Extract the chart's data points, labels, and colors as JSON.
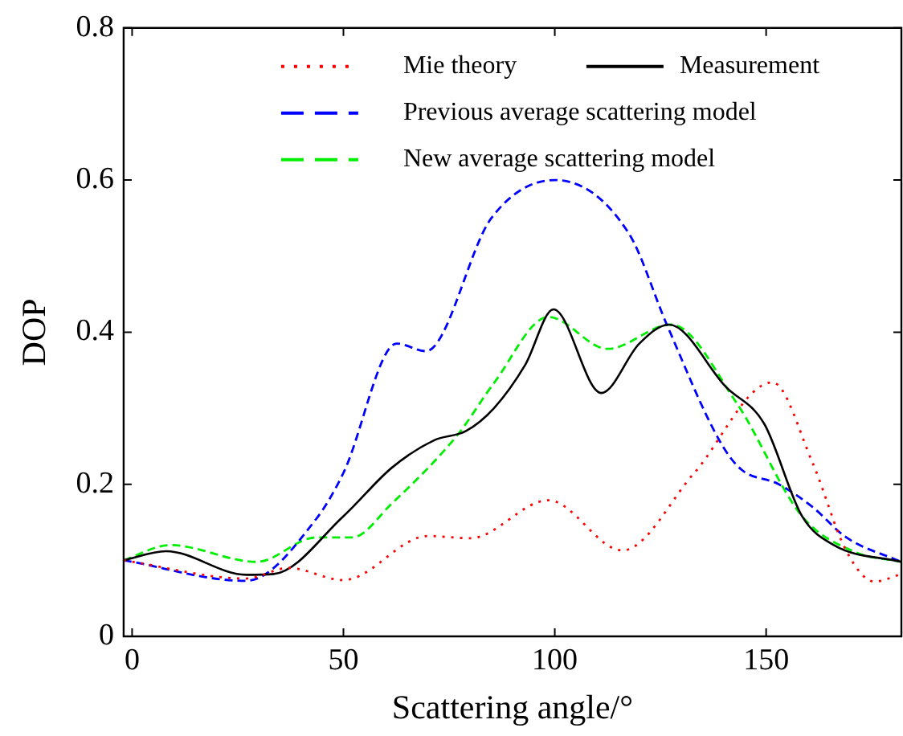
{
  "chart_data": {
    "type": "line",
    "xlabel": "Scattering angle/°",
    "ylabel": "DOP",
    "xlim": [
      -2,
      182
    ],
    "xticks": [
      0,
      50,
      100,
      150
    ],
    "ylim": [
      0,
      0.8
    ],
    "yticks": [
      0,
      0.2,
      0.4,
      0.6,
      0.8
    ],
    "grid": false,
    "legend": "top right",
    "marker": "none",
    "series": [
      {
        "name": "Mie theory",
        "color": "#ff0000",
        "line_style": "dotted",
        "x": [
          -2,
          27,
          37,
          50,
          70,
          80,
          98.5,
          116,
          133,
          151.5,
          161,
          169,
          175.6,
          182
        ],
        "values": [
          0.1,
          0.076,
          0.09,
          0.074,
          0.132,
          0.129,
          0.179,
          0.113,
          0.215,
          0.334,
          0.228,
          0.112,
          0.072,
          0.082
        ]
      },
      {
        "name": "Measurement",
        "color": "#000000",
        "line_style": "solid",
        "x": [
          -2,
          8,
          27,
          33.5,
          50,
          61.5,
          71.5,
          79,
          85.6,
          93,
          99.7,
          111,
          120,
          127,
          140.5,
          149.5,
          158.5,
          166,
          182
        ],
        "values": [
          0.1,
          0.112,
          0.081,
          0.082,
          0.158,
          0.222,
          0.258,
          0.27,
          0.3,
          0.357,
          0.43,
          0.32,
          0.385,
          0.41,
          0.328,
          0.28,
          0.158,
          0.12,
          0.098
        ]
      },
      {
        "name": "Previous average scattering model",
        "color": "#0000ff",
        "line_style": "dashed",
        "x": [
          -2,
          26.9,
          43.5,
          50,
          62.6,
          69.5,
          85,
          100,
          117.5,
          126.5,
          139,
          144,
          153,
          161,
          169,
          182
        ],
        "values": [
          0.1,
          0.073,
          0.154,
          0.215,
          0.385,
          0.375,
          0.55,
          0.6,
          0.53,
          0.41,
          0.257,
          0.22,
          0.2,
          0.17,
          0.13,
          0.098
        ]
      },
      {
        "name": "New average scattering model",
        "color": "#00ee00",
        "line_style": "dashed",
        "x": [
          -2,
          9,
          29.5,
          43.5,
          52,
          61.5,
          77,
          85.6,
          98.5,
          112.5,
          127.5,
          143,
          158.5,
          171,
          182
        ],
        "values": [
          0.1,
          0.12,
          0.098,
          0.13,
          0.13,
          0.175,
          0.265,
          0.333,
          0.42,
          0.378,
          0.41,
          0.307,
          0.158,
          0.111,
          0.098
        ]
      }
    ]
  }
}
